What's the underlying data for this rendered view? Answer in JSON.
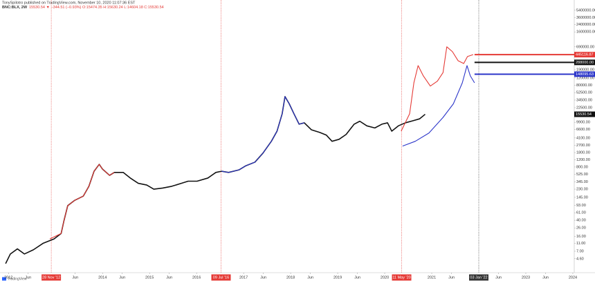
{
  "header": {
    "author_line": "TonySpilotro published on TradingView.com, November 10, 2020 11:07:36 EST",
    "symbol": "BNC:BLX, 2W",
    "quote": "15530.54 ▼ −344.51 (−0.93%) O:15474.35 H:15630.24 L:14604.18 C:15530.54"
  },
  "footer": {
    "brand": "TradingView"
  },
  "chart_data": {
    "type": "line",
    "log_y": true,
    "grid": false,
    "xlim": [
      2011.82,
      2024.03
    ],
    "ylim": [
      2.1,
      6520000
    ],
    "xticks": [
      {
        "value": 2012,
        "label": "2012"
      },
      {
        "value": 2012.42,
        "label": "Jun"
      },
      {
        "value": 2013.42,
        "label": "Jun"
      },
      {
        "value": 2014,
        "label": "2014"
      },
      {
        "value": 2014.42,
        "label": "Jun"
      },
      {
        "value": 2015,
        "label": "2015"
      },
      {
        "value": 2015.42,
        "label": "Jun"
      },
      {
        "value": 2016,
        "label": "2016"
      },
      {
        "value": 2017,
        "label": "2017"
      },
      {
        "value": 2017.42,
        "label": "Jun"
      },
      {
        "value": 2018,
        "label": "2018"
      },
      {
        "value": 2018.42,
        "label": "Jun"
      },
      {
        "value": 2019,
        "label": "2019"
      },
      {
        "value": 2019.42,
        "label": "Jun"
      },
      {
        "value": 2020,
        "label": "2020"
      },
      {
        "value": 2021,
        "label": "2021"
      },
      {
        "value": 2021.42,
        "label": "Jun"
      },
      {
        "value": 2022.42,
        "label": "Jun"
      },
      {
        "value": 2023,
        "label": "2023"
      },
      {
        "value": 2023.42,
        "label": "Jun"
      },
      {
        "value": 2024,
        "label": "2024"
      }
    ],
    "yticks": [
      {
        "value": 5400000,
        "label": "5400000.00"
      },
      {
        "value": 3600000,
        "label": "3600000.00"
      },
      {
        "value": 2400000,
        "label": "2400000.00"
      },
      {
        "value": 1600000,
        "label": "1600000.00"
      },
      {
        "value": 690000,
        "label": "690000.00"
      },
      {
        "value": 190000,
        "label": "190000.00"
      },
      {
        "value": 120000,
        "label": "120000.00"
      },
      {
        "value": 80000,
        "label": "80000.00"
      },
      {
        "value": 52500,
        "label": "52500.00"
      },
      {
        "value": 34500,
        "label": "34500.00"
      },
      {
        "value": 22500,
        "label": "22500.00"
      },
      {
        "value": 9900,
        "label": "9900.00"
      },
      {
        "value": 6600,
        "label": "6600.00"
      },
      {
        "value": 4100,
        "label": "4100.00"
      },
      {
        "value": 2700,
        "label": "2700.00"
      },
      {
        "value": 1800,
        "label": "1800.00"
      },
      {
        "value": 1200,
        "label": "1200.00"
      },
      {
        "value": 800,
        "label": "800.00"
      },
      {
        "value": 525,
        "label": "525.00"
      },
      {
        "value": 345,
        "label": "345.00"
      },
      {
        "value": 230,
        "label": "230.00"
      },
      {
        "value": 145,
        "label": "145.00"
      },
      {
        "value": 93,
        "label": "93.00"
      },
      {
        "value": 61,
        "label": "61.00"
      },
      {
        "value": 40,
        "label": "40.00"
      },
      {
        "value": 26,
        "label": "26.00"
      },
      {
        "value": 16,
        "label": "16.00"
      },
      {
        "value": 11,
        "label": "11.00"
      },
      {
        "value": 7,
        "label": "7.00"
      },
      {
        "value": 4.6,
        "label": "4.60"
      }
    ],
    "series": [
      {
        "color": "#111111",
        "width": 1.6,
        "x": [
          2011.94,
          2012.04,
          2012.19,
          2012.34,
          2012.53,
          2012.74,
          2012.97,
          2013.12,
          2013.18,
          2013.26,
          2013.41,
          2013.59,
          2013.71,
          2013.82,
          2013.93,
          2014.0,
          2014.15,
          2014.25,
          2014.44,
          2014.59,
          2014.76,
          2014.94,
          2015.09,
          2015.28,
          2015.47,
          2015.68,
          2015.82,
          2016.01,
          2016.24,
          2016.41,
          2016.53,
          2016.68,
          2016.9,
          2017.04,
          2017.24,
          2017.41,
          2017.59,
          2017.71,
          2017.82,
          2017.88,
          2017.97,
          2018.07,
          2018.18,
          2018.29,
          2018.44,
          2018.62,
          2018.76,
          2018.88,
          2019.03,
          2019.18,
          2019.35,
          2019.47,
          2019.62,
          2019.79,
          2019.94,
          2020.06,
          2020.15,
          2020.29,
          2020.44,
          2020.59,
          2020.74,
          2020.86
        ],
        "values": [
          3.5,
          6,
          8,
          6,
          7.6,
          11,
          14,
          19,
          39,
          91,
          123,
          155,
          270,
          630,
          930,
          710,
          500,
          590,
          590,
          430,
          320,
          290,
          230,
          245,
          270,
          320,
          360,
          360,
          430,
          590,
          630,
          590,
          680,
          850,
          1050,
          1740,
          3400,
          6000,
          16000,
          42000,
          28000,
          16000,
          8900,
          9600,
          6500,
          5600,
          4800,
          3400,
          3800,
          5000,
          8900,
          10500,
          8100,
          7200,
          8900,
          9600,
          6000,
          8100,
          9600,
          10700,
          12000,
          15530.54
        ]
      },
      {
        "color": "#e53935",
        "width": 1.1,
        "x": [
          2012.88,
          2013.12,
          2013.18,
          2013.26,
          2013.41,
          2013.59,
          2013.71,
          2013.82,
          2013.93,
          2014.0,
          2014.15,
          2014.25
        ],
        "values": [
          14,
          19,
          39,
          91,
          123,
          155,
          270,
          630,
          930,
          710,
          500,
          590
        ]
      },
      {
        "color": "#e53935",
        "width": 1.1,
        "x": [
          2020.35,
          2020.53,
          2020.62,
          2020.71,
          2020.82,
          2020.97,
          2021.12,
          2021.24,
          2021.32,
          2021.44,
          2021.56,
          2021.68,
          2021.76,
          2021.88
        ],
        "values": [
          6000,
          16000,
          91000,
          240000,
          135000,
          76000,
          100000,
          162000,
          690000,
          525000,
          316000,
          270000,
          400000,
          445000
        ]
      },
      {
        "color": "#2b35c9",
        "width": 1.1,
        "x": [
          2016.53,
          2016.68,
          2016.9,
          2017.04,
          2017.24,
          2017.41,
          2017.59,
          2017.71,
          2017.82,
          2017.88,
          2017.97,
          2018.07,
          2018.18,
          2018.29
        ],
        "values": [
          630,
          590,
          680,
          850,
          1050,
          1740,
          3400,
          6000,
          16000,
          42000,
          28000,
          16000,
          8900,
          9600
        ]
      },
      {
        "color": "#2b35c9",
        "width": 1.1,
        "x": [
          2020.38,
          2020.65,
          2020.94,
          2021.24,
          2021.46,
          2021.65,
          2021.75,
          2021.82,
          2021.91
        ],
        "values": [
          2600,
          3400,
          5400,
          13000,
          28000,
          91000,
          240000,
          135000,
          91000
        ]
      }
    ],
    "levels": [
      {
        "value": 445116.87,
        "color": "#e53935",
        "from": 2021.91
      },
      {
        "value": 288000,
        "label": "288000.00",
        "color": "#111111",
        "from": 2021.91
      },
      {
        "value": 148095.63,
        "color": "#2b35c9",
        "from": 2021.91
      }
    ],
    "last_price": {
      "value": 15530.54,
      "color": "#111111"
    },
    "markers": [
      {
        "x": 2012.91,
        "label": "28 Nov '12",
        "color": "#e53935"
      },
      {
        "x": 2016.52,
        "label": "09 Jul '16",
        "color": "#e53935"
      },
      {
        "x": 2020.36,
        "label": "11 May '20",
        "color": "#e53935"
      },
      {
        "x": 2022.0,
        "label": "03 Jan '22",
        "color": "#333333"
      }
    ]
  }
}
